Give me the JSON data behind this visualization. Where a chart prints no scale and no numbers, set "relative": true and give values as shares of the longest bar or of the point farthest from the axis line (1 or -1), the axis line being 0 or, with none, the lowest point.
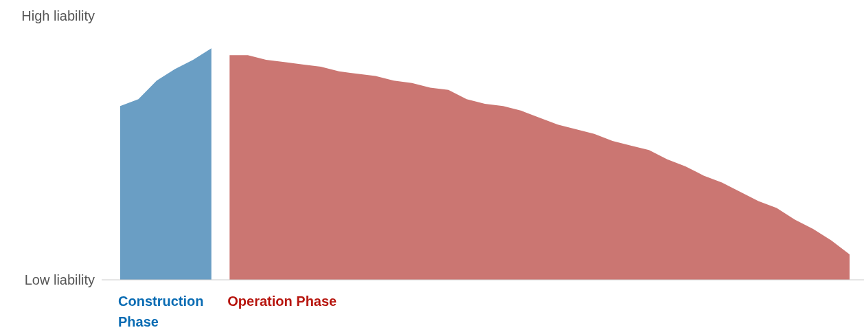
{
  "chart_data": {
    "type": "area",
    "relative": true,
    "categories": [
      null,
      null,
      null,
      null,
      null,
      null,
      null,
      null,
      null,
      null,
      null,
      null,
      null,
      null,
      null,
      null,
      null,
      null,
      null,
      null,
      null,
      null,
      null,
      null,
      null,
      null,
      null,
      null,
      null,
      null,
      null,
      null,
      null,
      null,
      null,
      null,
      null,
      null,
      null,
      null,
      null
    ],
    "series": [
      {
        "name": "Construction Phase",
        "color": "#6a9ec4",
        "values": [
          0.75,
          0.78,
          0.86,
          0.91,
          0.95,
          1,
          null,
          null,
          null,
          null,
          null,
          null,
          null,
          null,
          null,
          null,
          null,
          null,
          null,
          null,
          null,
          null,
          null,
          null,
          null,
          null,
          null,
          null,
          null,
          null,
          null,
          null,
          null,
          null,
          null,
          null,
          null,
          null,
          null,
          null,
          null
        ]
      },
      {
        "name": "Operation Phase",
        "color": "#cb7672",
        "values": [
          null,
          null,
          null,
          null,
          null,
          null,
          0.97,
          0.97,
          0.95,
          0.94,
          0.93,
          0.92,
          0.9,
          0.89,
          0.88,
          0.86,
          0.85,
          0.83,
          0.82,
          0.78,
          0.76,
          0.75,
          0.73,
          0.7,
          0.67,
          0.65,
          0.63,
          0.6,
          0.58,
          0.56,
          0.52,
          0.49,
          0.45,
          0.42,
          0.38,
          0.34,
          0.31,
          0.26,
          0.22,
          0.17,
          0.11
        ]
      }
    ],
    "annotations": [
      "High liability",
      "Low liability"
    ]
  }
}
